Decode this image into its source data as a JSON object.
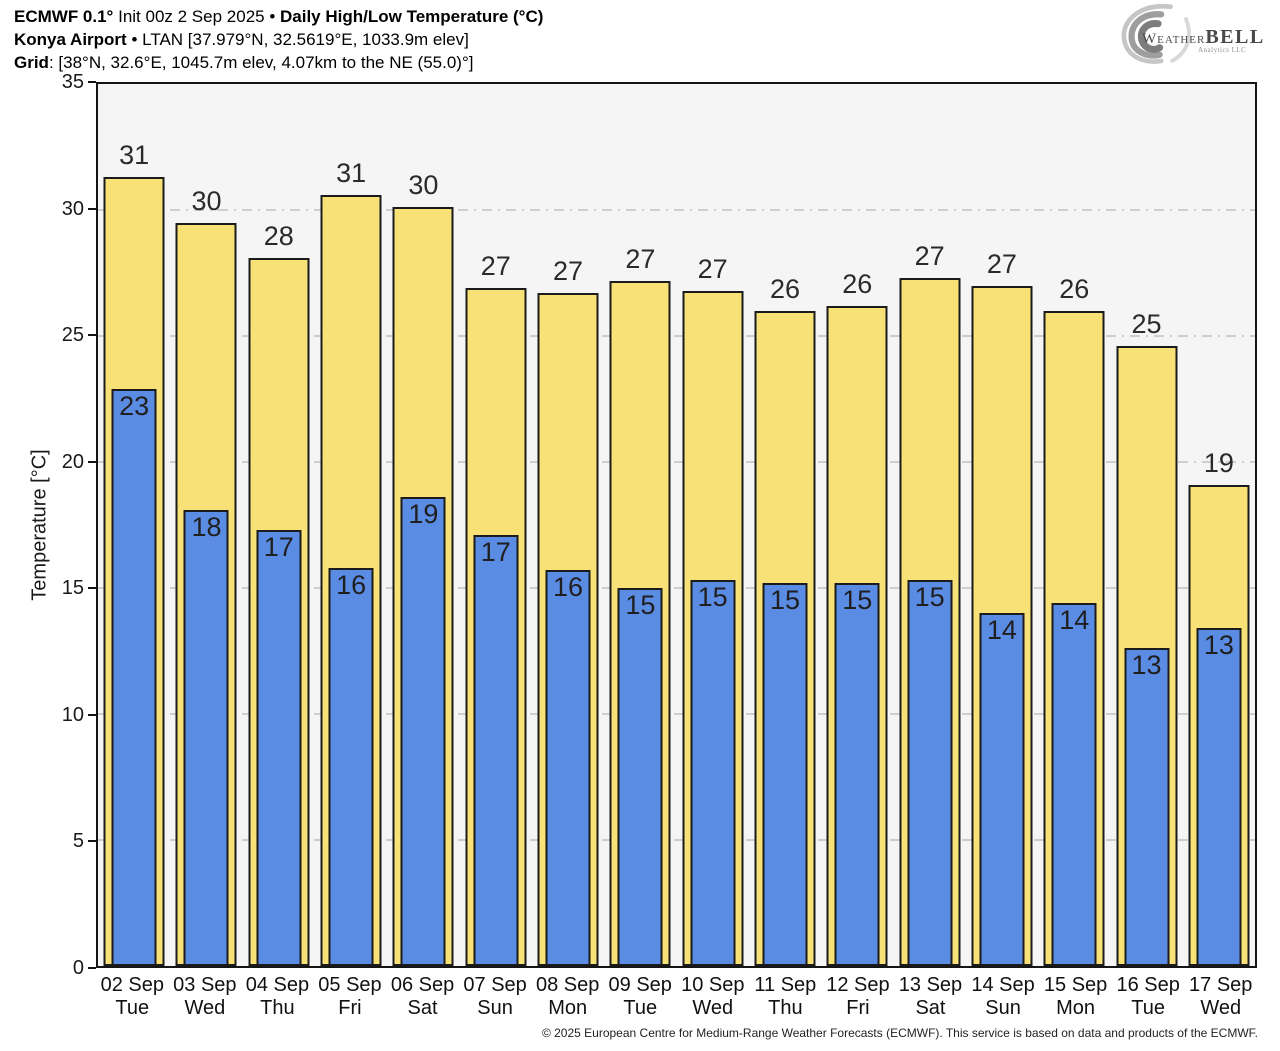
{
  "header": {
    "line1": {
      "model_bold": "ECMWF 0.1°",
      "init_text": " Init 00z 2 Sep 2025 ",
      "bullet": "•",
      "title_bold": " Daily High/Low Temperature (°C)"
    },
    "line2": {
      "station_bold": "Konya Airport",
      "bullet": " • ",
      "details": "LTAN [37.979°N, 32.5619°E, 1033.9m elev]"
    },
    "line3": {
      "label_bold": "Grid",
      "details": ": [38°N, 32.6°E, 1045.7m elev, 4.07km to the NE (55.0)°]"
    }
  },
  "logo": {
    "word_weather": "Weather",
    "word_bell": "BELL",
    "subtitle": "Analytics LLC"
  },
  "chart_data": {
    "type": "bar",
    "title": "Daily High/Low Temperature (°C)",
    "ylabel": "Temperature [°C]",
    "ylim": [
      0,
      35
    ],
    "yticks": [
      0,
      5,
      10,
      15,
      20,
      25,
      30,
      35
    ],
    "grid": "horizontal dashed gridlines at 5..30, light gray, plot framed in black",
    "legend": "none",
    "categories": [
      {
        "date": "02 Sep",
        "day": "Tue"
      },
      {
        "date": "03 Sep",
        "day": "Wed"
      },
      {
        "date": "04 Sep",
        "day": "Thu"
      },
      {
        "date": "05 Sep",
        "day": "Fri"
      },
      {
        "date": "06 Sep",
        "day": "Sat"
      },
      {
        "date": "07 Sep",
        "day": "Sun"
      },
      {
        "date": "08 Sep",
        "day": "Mon"
      },
      {
        "date": "09 Sep",
        "day": "Tue"
      },
      {
        "date": "10 Sep",
        "day": "Wed"
      },
      {
        "date": "11 Sep",
        "day": "Thu"
      },
      {
        "date": "12 Sep",
        "day": "Fri"
      },
      {
        "date": "13 Sep",
        "day": "Sat"
      },
      {
        "date": "14 Sep",
        "day": "Sun"
      },
      {
        "date": "15 Sep",
        "day": "Mon"
      },
      {
        "date": "16 Sep",
        "day": "Tue"
      },
      {
        "date": "17 Sep",
        "day": "Wed"
      }
    ],
    "series": [
      {
        "name": "Daily High",
        "role": "high",
        "color": "#F8E176",
        "labels": [
          31,
          30,
          28,
          31,
          30,
          27,
          27,
          27,
          27,
          26,
          26,
          27,
          27,
          26,
          25,
          19
        ],
        "values": [
          31.3,
          29.5,
          28.1,
          30.6,
          30.1,
          26.9,
          26.7,
          27.2,
          26.8,
          26.0,
          26.2,
          27.3,
          27.0,
          26.0,
          24.6,
          19.1
        ]
      },
      {
        "name": "Daily Low",
        "role": "low",
        "color": "#5B8CE4",
        "labels": [
          23,
          18,
          17,
          16,
          19,
          17,
          16,
          15,
          15,
          15,
          15,
          15,
          14,
          14,
          13,
          13
        ],
        "values": [
          22.9,
          18.1,
          17.3,
          15.8,
          18.6,
          17.1,
          15.7,
          15.0,
          15.3,
          15.2,
          15.2,
          15.3,
          14.0,
          14.4,
          12.6,
          13.4
        ]
      }
    ]
  },
  "footer": {
    "copyright": "© 2025 European Centre for Medium-Range Weather Forecasts (ECMWF). This service is based on data and products of the ECMWF."
  },
  "colors": {
    "high_fill": "#F8E176",
    "low_fill": "#5B8CE4",
    "bar_border": "#1b1b1b",
    "plot_bg": "#F5F5F5",
    "grid": "#C9C9C9",
    "axis": "#141414"
  }
}
